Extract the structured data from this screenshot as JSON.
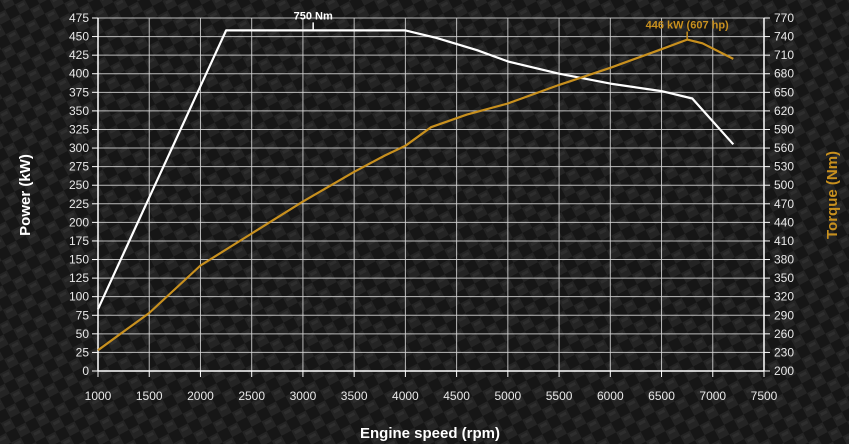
{
  "chart_data": {
    "type": "line",
    "xlabel": "Engine speed (rpm)",
    "ylabel_left": "Power (kW)",
    "ylabel_right": "Torque (Nm)",
    "x_ticks": [
      1000,
      1500,
      2000,
      2500,
      3000,
      3500,
      4000,
      4500,
      5000,
      5500,
      6000,
      6500,
      7000,
      7500
    ],
    "y_left_ticks": [
      0,
      25,
      50,
      75,
      100,
      125,
      150,
      175,
      200,
      225,
      250,
      275,
      300,
      325,
      350,
      375,
      400,
      425,
      450,
      475
    ],
    "y_right_ticks": [
      200,
      230,
      260,
      290,
      320,
      350,
      380,
      410,
      440,
      470,
      500,
      530,
      560,
      590,
      620,
      650,
      680,
      710,
      740,
      770
    ],
    "xlim": [
      1000,
      7500
    ],
    "ylim_left": [
      0,
      475
    ],
    "ylim_right": [
      200,
      770
    ],
    "grid": true,
    "series": [
      {
        "axis": "right",
        "color": "#ffffff",
        "points": [
          [
            1000,
            300
          ],
          [
            1500,
            480
          ],
          [
            2000,
            660
          ],
          [
            2250,
            750
          ],
          [
            4000,
            750
          ],
          [
            4300,
            738
          ],
          [
            4700,
            718
          ],
          [
            5000,
            700
          ],
          [
            5500,
            680
          ],
          [
            6000,
            664
          ],
          [
            6500,
            652
          ],
          [
            6800,
            640
          ],
          [
            7200,
            566
          ]
        ]
      },
      {
        "axis": "left",
        "color": "#c8901e",
        "points": [
          [
            1000,
            28
          ],
          [
            1500,
            78
          ],
          [
            2000,
            142
          ],
          [
            2500,
            185
          ],
          [
            3000,
            228
          ],
          [
            3500,
            268
          ],
          [
            3800,
            290
          ],
          [
            4000,
            303
          ],
          [
            4250,
            328
          ],
          [
            4600,
            345
          ],
          [
            5000,
            360
          ],
          [
            5500,
            385
          ],
          [
            6000,
            408
          ],
          [
            6500,
            433
          ],
          [
            6750,
            446
          ],
          [
            6900,
            441
          ],
          [
            7200,
            420
          ]
        ]
      }
    ],
    "annotations": [
      {
        "text": "750 Nm",
        "x": 3100,
        "axis": "right",
        "y": 750,
        "color": "#ffffff"
      },
      {
        "text": "446 kW (607 hp)",
        "x": 6750,
        "axis": "left",
        "y": 446,
        "color": "#c8901e"
      }
    ]
  }
}
